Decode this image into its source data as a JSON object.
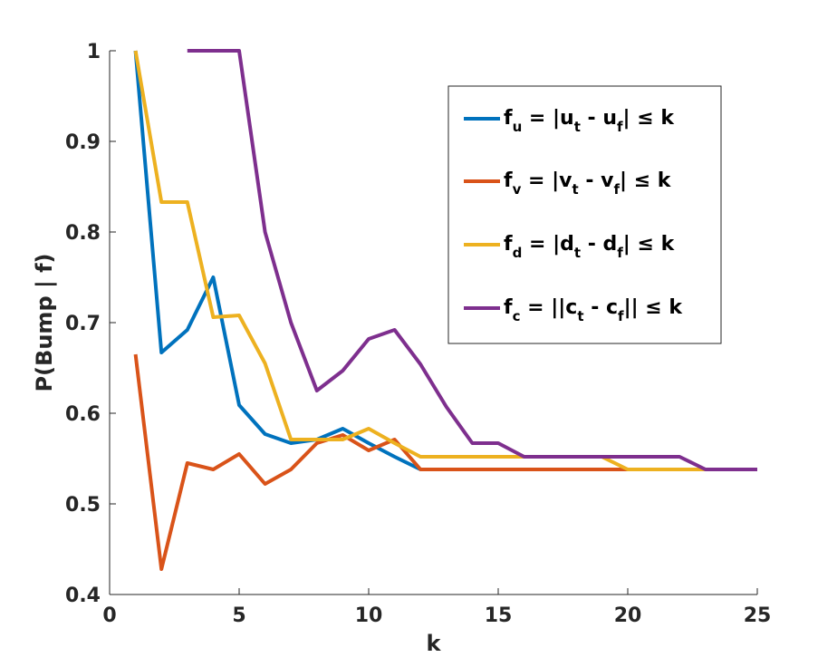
{
  "chart_data": {
    "type": "line",
    "xlabel": "k",
    "ylabel": "P(Bump | f)",
    "xlim": [
      0,
      25
    ],
    "ylim": [
      0.4,
      1.0
    ],
    "xticks": [
      "0",
      "5",
      "10",
      "15",
      "20",
      "25"
    ],
    "yticks": [
      "0.4",
      "0.5",
      "0.6",
      "0.7",
      "0.8",
      "0.9",
      "1"
    ],
    "grid": false,
    "legend_position": "top-right",
    "series": [
      {
        "key": "fu",
        "color": "#0072BD",
        "legend": {
          "main": "f",
          "sub": "u",
          "rest": [
            " = |u",
            "t",
            " - u",
            "f",
            "| ≤ k"
          ]
        },
        "x": [
          1,
          2,
          3,
          4,
          5,
          6,
          7,
          8,
          9,
          10,
          11,
          12,
          13,
          14,
          15,
          16,
          17,
          18,
          19,
          20,
          21,
          22,
          23,
          24,
          25
        ],
        "y": [
          1.0,
          0.667,
          0.692,
          0.75,
          0.609,
          0.577,
          0.567,
          0.571,
          0.583,
          0.567,
          0.552,
          0.538,
          0.538,
          0.538,
          0.538,
          0.538,
          0.538,
          0.538,
          0.538,
          0.538,
          0.538,
          0.538,
          0.538,
          0.538,
          0.538
        ]
      },
      {
        "key": "fv",
        "color": "#D95319",
        "legend": {
          "main": "f",
          "sub": "v",
          "rest": [
            " = |v",
            "t",
            " - v",
            "f",
            "| ≤ k"
          ]
        },
        "x": [
          1,
          2,
          3,
          4,
          5,
          6,
          7,
          8,
          9,
          10,
          11,
          12,
          13,
          14,
          15,
          16,
          17,
          18,
          19,
          20,
          21,
          22,
          23,
          24,
          25
        ],
        "y": [
          0.665,
          0.428,
          0.545,
          0.538,
          0.555,
          0.522,
          0.538,
          0.567,
          0.576,
          0.559,
          0.571,
          0.538,
          0.538,
          0.538,
          0.538,
          0.538,
          0.538,
          0.538,
          0.538,
          0.538,
          0.538,
          0.538,
          0.538,
          0.538,
          0.538
        ]
      },
      {
        "key": "fd",
        "color": "#EDB120",
        "legend": {
          "main": "f",
          "sub": "d",
          "rest": [
            " = |d",
            "t",
            " - d",
            "f",
            "| ≤ k"
          ]
        },
        "x": [
          1,
          2,
          3,
          4,
          5,
          6,
          7,
          8,
          9,
          10,
          11,
          12,
          13,
          14,
          15,
          16,
          17,
          18,
          19,
          20,
          21,
          22,
          23,
          24,
          25
        ],
        "y": [
          1.0,
          0.833,
          0.833,
          0.706,
          0.708,
          0.655,
          0.571,
          0.571,
          0.571,
          0.583,
          0.567,
          0.552,
          0.552,
          0.552,
          0.552,
          0.552,
          0.552,
          0.552,
          0.552,
          0.538,
          0.538,
          0.538,
          0.538,
          0.538,
          0.538
        ]
      },
      {
        "key": "fc",
        "color": "#7E2F8E",
        "legend": {
          "main": "f",
          "sub": "c",
          "rest": [
            " = ||c",
            "t",
            " - c",
            "f",
            "|| ≤ k"
          ]
        },
        "x": [
          3,
          4,
          5,
          6,
          7,
          8,
          9,
          10,
          11,
          12,
          13,
          14,
          15,
          16,
          17,
          18,
          19,
          20,
          21,
          22,
          23,
          24,
          25
        ],
        "y": [
          1.0,
          1.0,
          1.0,
          0.8,
          0.7,
          0.625,
          0.647,
          0.682,
          0.692,
          0.654,
          0.607,
          0.567,
          0.567,
          0.552,
          0.552,
          0.552,
          0.552,
          0.552,
          0.552,
          0.552,
          0.538,
          0.538,
          0.538
        ]
      }
    ]
  }
}
